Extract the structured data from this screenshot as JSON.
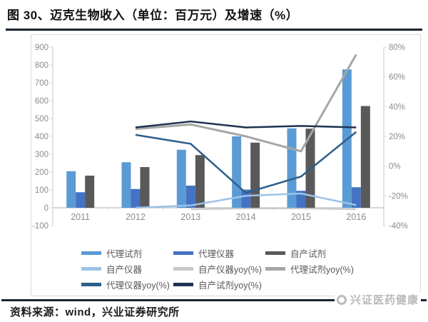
{
  "header": {
    "title": "图 30、迈克生物收入（单位：百万元）及增速（%）"
  },
  "footer": {
    "source": "资料来源：wind，兴业证券研究所",
    "logo_text": "兴证医药健康"
  },
  "chart_data": {
    "type": "bar",
    "subtype": "bar-line-combo",
    "title": "迈克生物收入（单位：百万元）及增速（%）",
    "categories": [
      "2011",
      "2012",
      "2013",
      "2014",
      "2015",
      "2016"
    ],
    "left_axis": {
      "ticks": [
        900,
        800,
        700,
        600,
        500,
        400,
        300,
        200,
        100,
        0,
        -100
      ],
      "range": [
        -100,
        900
      ]
    },
    "right_axis": {
      "ticks": [
        80,
        60,
        40,
        20,
        0,
        -20,
        -40
      ],
      "range": [
        -40,
        80
      ],
      "unit": "%"
    },
    "grid": "off",
    "legend_position": "bottom",
    "series": [
      {
        "name": "代理试剂",
        "render": "bar",
        "axis": "left",
        "color": "#5b9bd5",
        "values": [
          205,
          255,
          325,
          400,
          445,
          775
        ]
      },
      {
        "name": "代理仪器",
        "render": "bar",
        "axis": "left",
        "color": "#4472c4",
        "values": [
          87,
          105,
          124,
          102,
          95,
          115
        ]
      },
      {
        "name": "自产试剂",
        "render": "bar",
        "axis": "left",
        "color": "#595959",
        "values": [
          180,
          228,
          295,
          365,
          443,
          570
        ]
      },
      {
        "name": "自产仪器",
        "render": "line",
        "axis": "left",
        "color": "#9dc3e6",
        "stroke_width": 2.5,
        "values": [
          null,
          0,
          13,
          67,
          80,
          15
        ]
      },
      {
        "name": "自产仪器yoy(%)",
        "render": "line",
        "axis": "right",
        "color": "#c9c9c9",
        "stroke_width": 2,
        "values": [
          null,
          null,
          -29,
          -28.5,
          -28.5,
          -29
        ]
      },
      {
        "name": "代理试剂yoy(%)",
        "render": "line",
        "axis": "right",
        "color": "#a6a6a6",
        "stroke_width": 3,
        "values": [
          null,
          25,
          28,
          20,
          10,
          75
        ]
      },
      {
        "name": "代理仪器yoy(%)",
        "render": "line",
        "axis": "right",
        "color": "#2e5f8a",
        "stroke_width": 2.5,
        "values": [
          null,
          21,
          15,
          -18,
          -7,
          23
        ]
      },
      {
        "name": "自产试剂yoy(%)",
        "render": "line",
        "axis": "right",
        "color": "#1f3352",
        "stroke_width": 2.5,
        "values": [
          null,
          26,
          30,
          26,
          27,
          26
        ]
      }
    ]
  }
}
